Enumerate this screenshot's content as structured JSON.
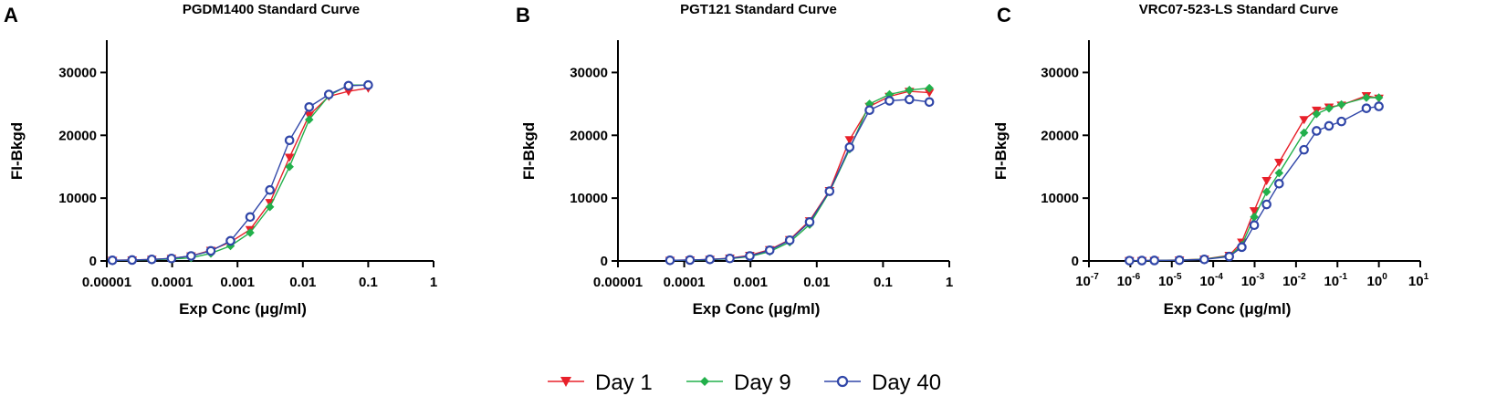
{
  "chart_data": [
    {
      "type": "line",
      "panel": "A",
      "title": "PGDM1400 Standard Curve",
      "xlabel": "Exp Conc (μg/ml)",
      "ylabel": "FI-Bkgd",
      "xscale": "log",
      "xlim": [
        1e-05,
        1
      ],
      "ylim": [
        0,
        35000
      ],
      "xtick_style": "decimal",
      "xticks": [
        {
          "value": 1e-05,
          "label": "0.00001"
        },
        {
          "value": 0.0001,
          "label": "0.0001"
        },
        {
          "value": 0.001,
          "label": "0.001"
        },
        {
          "value": 0.01,
          "label": "0.01"
        },
        {
          "value": 0.1,
          "label": "0.1"
        },
        {
          "value": 1,
          "label": "1"
        }
      ],
      "yticks": [
        {
          "value": 0,
          "label": "0"
        },
        {
          "value": 10000,
          "label": "10000"
        },
        {
          "value": 20000,
          "label": "20000"
        },
        {
          "value": 30000,
          "label": "30000"
        }
      ],
      "series": [
        {
          "name": "Day 1",
          "color": "#e8202a",
          "marker": "triangle-down",
          "x": [
            1.22e-05,
            2.44e-05,
            4.88e-05,
            9.77e-05,
            0.000195,
            0.000391,
            0.000781,
            0.00156,
            0.00313,
            0.00625,
            0.0125,
            0.025,
            0.05,
            0.1
          ],
          "y": [
            100,
            150,
            250,
            400,
            800,
            1700,
            3000,
            5000,
            9300,
            16500,
            23200,
            26200,
            27000,
            27500
          ]
        },
        {
          "name": "Day 9",
          "color": "#22b04b",
          "marker": "diamond",
          "x": [
            1.22e-05,
            2.44e-05,
            4.88e-05,
            9.77e-05,
            0.000195,
            0.000391,
            0.000781,
            0.00156,
            0.00313,
            0.00625,
            0.0125,
            0.025,
            0.05,
            0.1
          ],
          "y": [
            80,
            120,
            200,
            300,
            500,
            1200,
            2400,
            4500,
            8600,
            15000,
            22500,
            26300,
            28000,
            28000
          ]
        },
        {
          "name": "Day 40",
          "color": "#3046a8",
          "marker": "circle",
          "x": [
            1.22e-05,
            2.44e-05,
            4.88e-05,
            9.77e-05,
            0.000195,
            0.000391,
            0.000781,
            0.00156,
            0.00313,
            0.00625,
            0.0125,
            0.025,
            0.05,
            0.1
          ],
          "y": [
            100,
            150,
            250,
            400,
            800,
            1600,
            3200,
            7000,
            11300,
            19200,
            24500,
            26500,
            27900,
            28000
          ]
        }
      ]
    },
    {
      "type": "line",
      "panel": "B",
      "title": "PGT121 Standard Curve",
      "xlabel": "Exp Conc (μg/ml)",
      "ylabel": "FI-Bkgd",
      "xscale": "log",
      "xlim": [
        1e-05,
        1
      ],
      "ylim": [
        0,
        35000
      ],
      "xtick_style": "decimal",
      "xticks": [
        {
          "value": 1e-05,
          "label": "0.00001"
        },
        {
          "value": 0.0001,
          "label": "0.0001"
        },
        {
          "value": 0.001,
          "label": "0.001"
        },
        {
          "value": 0.01,
          "label": "0.01"
        },
        {
          "value": 0.1,
          "label": "0.1"
        },
        {
          "value": 1,
          "label": "1"
        }
      ],
      "yticks": [
        {
          "value": 0,
          "label": "0"
        },
        {
          "value": 10000,
          "label": "10000"
        },
        {
          "value": 20000,
          "label": "20000"
        },
        {
          "value": 30000,
          "label": "30000"
        }
      ],
      "series": [
        {
          "name": "Day 1",
          "color": "#e8202a",
          "marker": "triangle-down",
          "x": [
            6.1e-05,
            0.000122,
            0.000244,
            0.000488,
            0.000977,
            0.00195,
            0.00391,
            0.00781,
            0.0156,
            0.0313,
            0.0625,
            0.125,
            0.25,
            0.5
          ],
          "y": [
            100,
            150,
            250,
            450,
            900,
            1800,
            3400,
            6400,
            11200,
            19300,
            24600,
            26200,
            27000,
            26800
          ]
        },
        {
          "name": "Day 9",
          "color": "#22b04b",
          "marker": "diamond",
          "x": [
            6.1e-05,
            0.000122,
            0.000244,
            0.000488,
            0.000977,
            0.00195,
            0.00391,
            0.00781,
            0.0156,
            0.0313,
            0.0625,
            0.125,
            0.25,
            0.5
          ],
          "y": [
            80,
            120,
            200,
            350,
            700,
            1500,
            3000,
            5800,
            11000,
            17800,
            25000,
            26500,
            27200,
            27500
          ]
        },
        {
          "name": "Day 40",
          "color": "#3046a8",
          "marker": "circle",
          "x": [
            6.1e-05,
            0.000122,
            0.000244,
            0.000488,
            0.000977,
            0.00195,
            0.00391,
            0.00781,
            0.0156,
            0.0313,
            0.0625,
            0.125,
            0.25,
            0.5
          ],
          "y": [
            100,
            150,
            250,
            400,
            800,
            1700,
            3300,
            6200,
            11100,
            18100,
            24000,
            25500,
            25700,
            25300
          ]
        }
      ]
    },
    {
      "type": "line",
      "panel": "C",
      "title": "VRC07-523-LS Standard Curve",
      "xlabel": "Exp Conc (μg/ml)",
      "ylabel": "FI-Bkgd",
      "xscale": "log",
      "xlim": [
        1e-07,
        10
      ],
      "ylim": [
        0,
        35000
      ],
      "xtick_style": "power",
      "xticks": [
        {
          "value": 1e-07,
          "base": "10",
          "exp": "-7"
        },
        {
          "value": 1e-06,
          "base": "10",
          "exp": "-6"
        },
        {
          "value": 1e-05,
          "base": "10",
          "exp": "-5"
        },
        {
          "value": 0.0001,
          "base": "10",
          "exp": "-4"
        },
        {
          "value": 0.001,
          "base": "10",
          "exp": "-3"
        },
        {
          "value": 0.01,
          "base": "10",
          "exp": "-2"
        },
        {
          "value": 0.1,
          "base": "10",
          "exp": "-1"
        },
        {
          "value": 1,
          "base": "10",
          "exp": "0"
        },
        {
          "value": 10,
          "base": "10",
          "exp": "1"
        }
      ],
      "yticks": [
        {
          "value": 0,
          "label": "0"
        },
        {
          "value": 10000,
          "label": "10000"
        },
        {
          "value": 20000,
          "label": "20000"
        },
        {
          "value": 30000,
          "label": "30000"
        }
      ],
      "series": [
        {
          "name": "Day 1",
          "color": "#e8202a",
          "marker": "triangle-down",
          "x": [
            9.5e-07,
            1.9e-06,
            3.8e-06,
            1.53e-05,
            6.1e-05,
            0.000244,
            0.00049,
            0.00098,
            0.00195,
            0.0039,
            0.0156,
            0.0313,
            0.0625,
            0.125,
            0.5,
            1
          ],
          "y": [
            50,
            60,
            80,
            150,
            300,
            900,
            3000,
            8000,
            12800,
            15700,
            22500,
            24000,
            24500,
            24800,
            26300,
            25900
          ]
        },
        {
          "name": "Day 9",
          "color": "#22b04b",
          "marker": "diamond",
          "x": [
            9.5e-07,
            1.9e-06,
            3.8e-06,
            1.53e-05,
            6.1e-05,
            0.000244,
            0.00049,
            0.00098,
            0.00195,
            0.0039,
            0.0156,
            0.0313,
            0.0625,
            0.125,
            0.5,
            1
          ],
          "y": [
            40,
            50,
            70,
            130,
            280,
            800,
            2500,
            7000,
            11000,
            14000,
            20400,
            23400,
            24300,
            24900,
            26000,
            26000
          ]
        },
        {
          "name": "Day 40",
          "color": "#3046a8",
          "marker": "circle",
          "x": [
            9.5e-07,
            1.9e-06,
            3.8e-06,
            1.53e-05,
            6.1e-05,
            0.000244,
            0.00049,
            0.00098,
            0.00195,
            0.0039,
            0.0156,
            0.0313,
            0.0625,
            0.125,
            0.5,
            1
          ],
          "y": [
            50,
            60,
            80,
            120,
            250,
            700,
            2200,
            5700,
            9000,
            12300,
            17700,
            20700,
            21500,
            22200,
            24300,
            24600
          ]
        }
      ]
    }
  ],
  "legend": {
    "placement": "bottom-center",
    "items": [
      {
        "label": "Day 1",
        "color": "#e8202a",
        "marker": "triangle-down"
      },
      {
        "label": "Day 9",
        "color": "#22b04b",
        "marker": "diamond"
      },
      {
        "label": "Day 40",
        "color": "#3046a8",
        "marker": "circle"
      }
    ]
  }
}
